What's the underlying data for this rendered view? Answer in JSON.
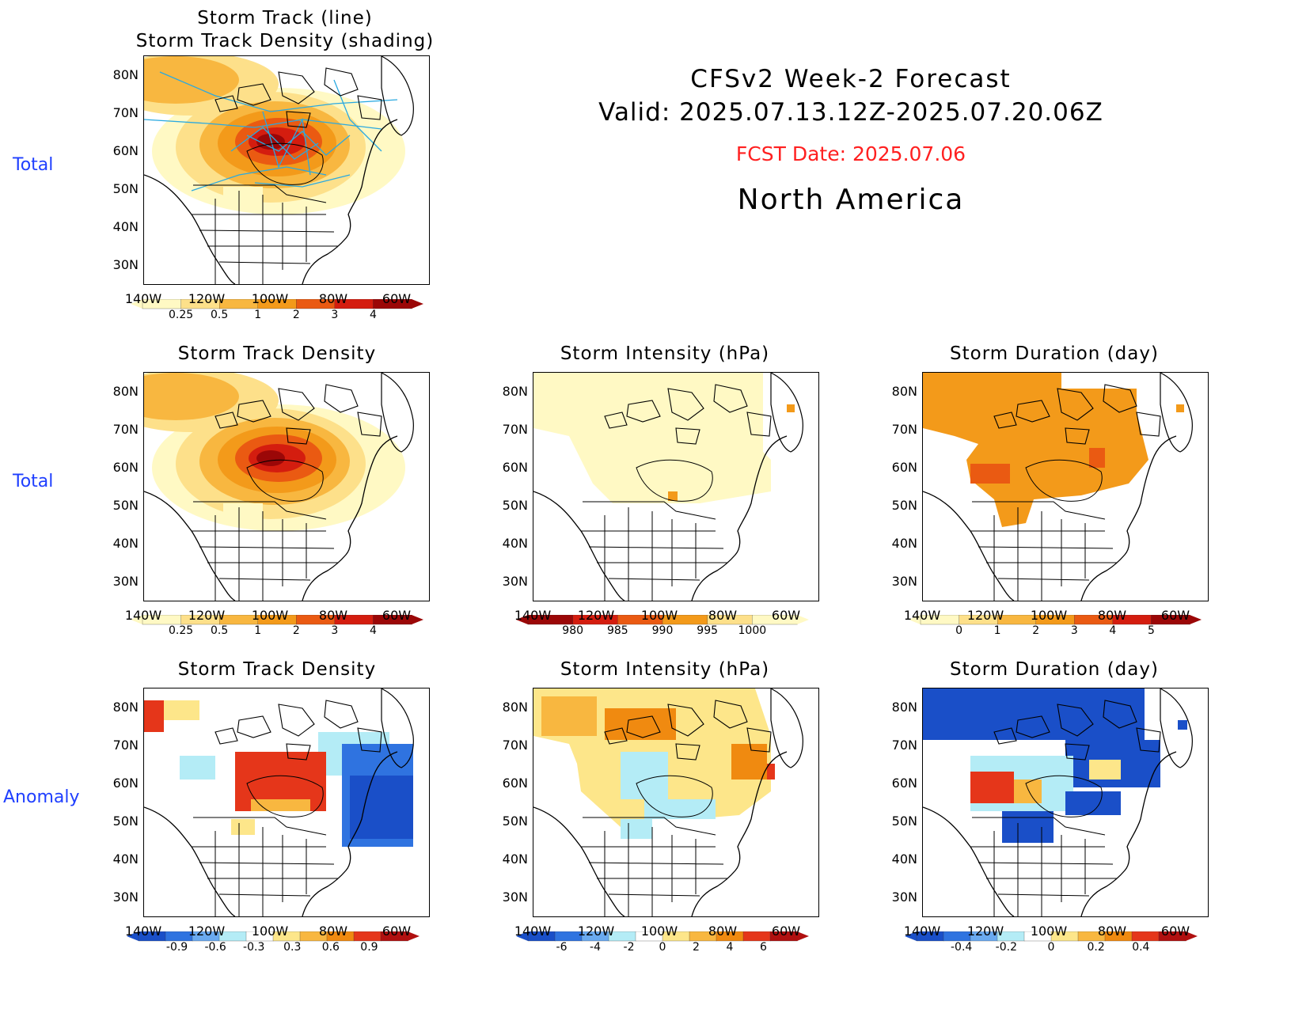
{
  "header": {
    "line1": "CFSv2 Week-2 Forecast",
    "line2": "Valid: 2025.07.13.12Z-2025.07.20.06Z",
    "fcst": "FCST Date: 2025.07.06",
    "region": "North America",
    "fcst_color": "#ff2020"
  },
  "row_labels": [
    "Total",
    "Total",
    "Anomaly"
  ],
  "lat_labels": [
    "80N",
    "70N",
    "60N",
    "50N",
    "40N",
    "30N"
  ],
  "lon_labels": [
    "140W",
    "120W",
    "100W",
    "80W",
    "60W"
  ],
  "panels": {
    "p1": {
      "title1": "Storm Track (line)",
      "title2": "Storm Track Density (shading)"
    },
    "p2": {
      "title": "Storm Track Density"
    },
    "p3": {
      "title": "Storm Intensity (hPa)"
    },
    "p4": {
      "title": "Storm Duration (day)"
    },
    "p5": {
      "title": "Storm Track Density"
    },
    "p6": {
      "title": "Storm Intensity (hPa)"
    },
    "p7": {
      "title": "Storm Duration (day)"
    }
  },
  "colorbars": {
    "density": {
      "labels": [
        "0.25",
        "0.5",
        "1",
        "2",
        "3",
        "4"
      ],
      "colors": [
        "#fff9c4",
        "#fde08a",
        "#f8b740",
        "#f39a1a",
        "#ea5a12",
        "#d41d0f",
        "#9b0707"
      ]
    },
    "intensity": {
      "labels": [
        "980",
        "985",
        "990",
        "995",
        "1000"
      ],
      "colors": [
        "#9b0707",
        "#d41d0f",
        "#ea5a12",
        "#f39a1a",
        "#fde08a",
        "#fff9c4"
      ]
    },
    "duration": {
      "labels": [
        "0",
        "1",
        "2",
        "3",
        "4",
        "5"
      ],
      "colors": [
        "#fff9c4",
        "#fde08a",
        "#f8b740",
        "#f39a1a",
        "#ea5a12",
        "#d41d0f",
        "#9b0707"
      ]
    },
    "anom_density": {
      "labels": [
        "-0.9",
        "-0.6",
        "-0.3",
        "0.3",
        "0.6",
        "0.9"
      ]
    },
    "anom_intensity": {
      "labels": [
        "-6",
        "-4",
        "-2",
        "0",
        "2",
        "4",
        "6"
      ]
    },
    "anom_duration": {
      "labels": [
        "-0.4",
        "-0.2",
        "0",
        "0.2",
        "0.4"
      ]
    },
    "anom_colors": [
      "#1a4fc8",
      "#2f73e0",
      "#6aaaf0",
      "#b4ecf6",
      "#ffffff",
      "#fde68a",
      "#f8b740",
      "#f08a10",
      "#e5361a",
      "#b01010"
    ]
  },
  "palette": {
    "storm_track_line": "#2aa9e0",
    "row_label_color": "#1f3fff"
  }
}
